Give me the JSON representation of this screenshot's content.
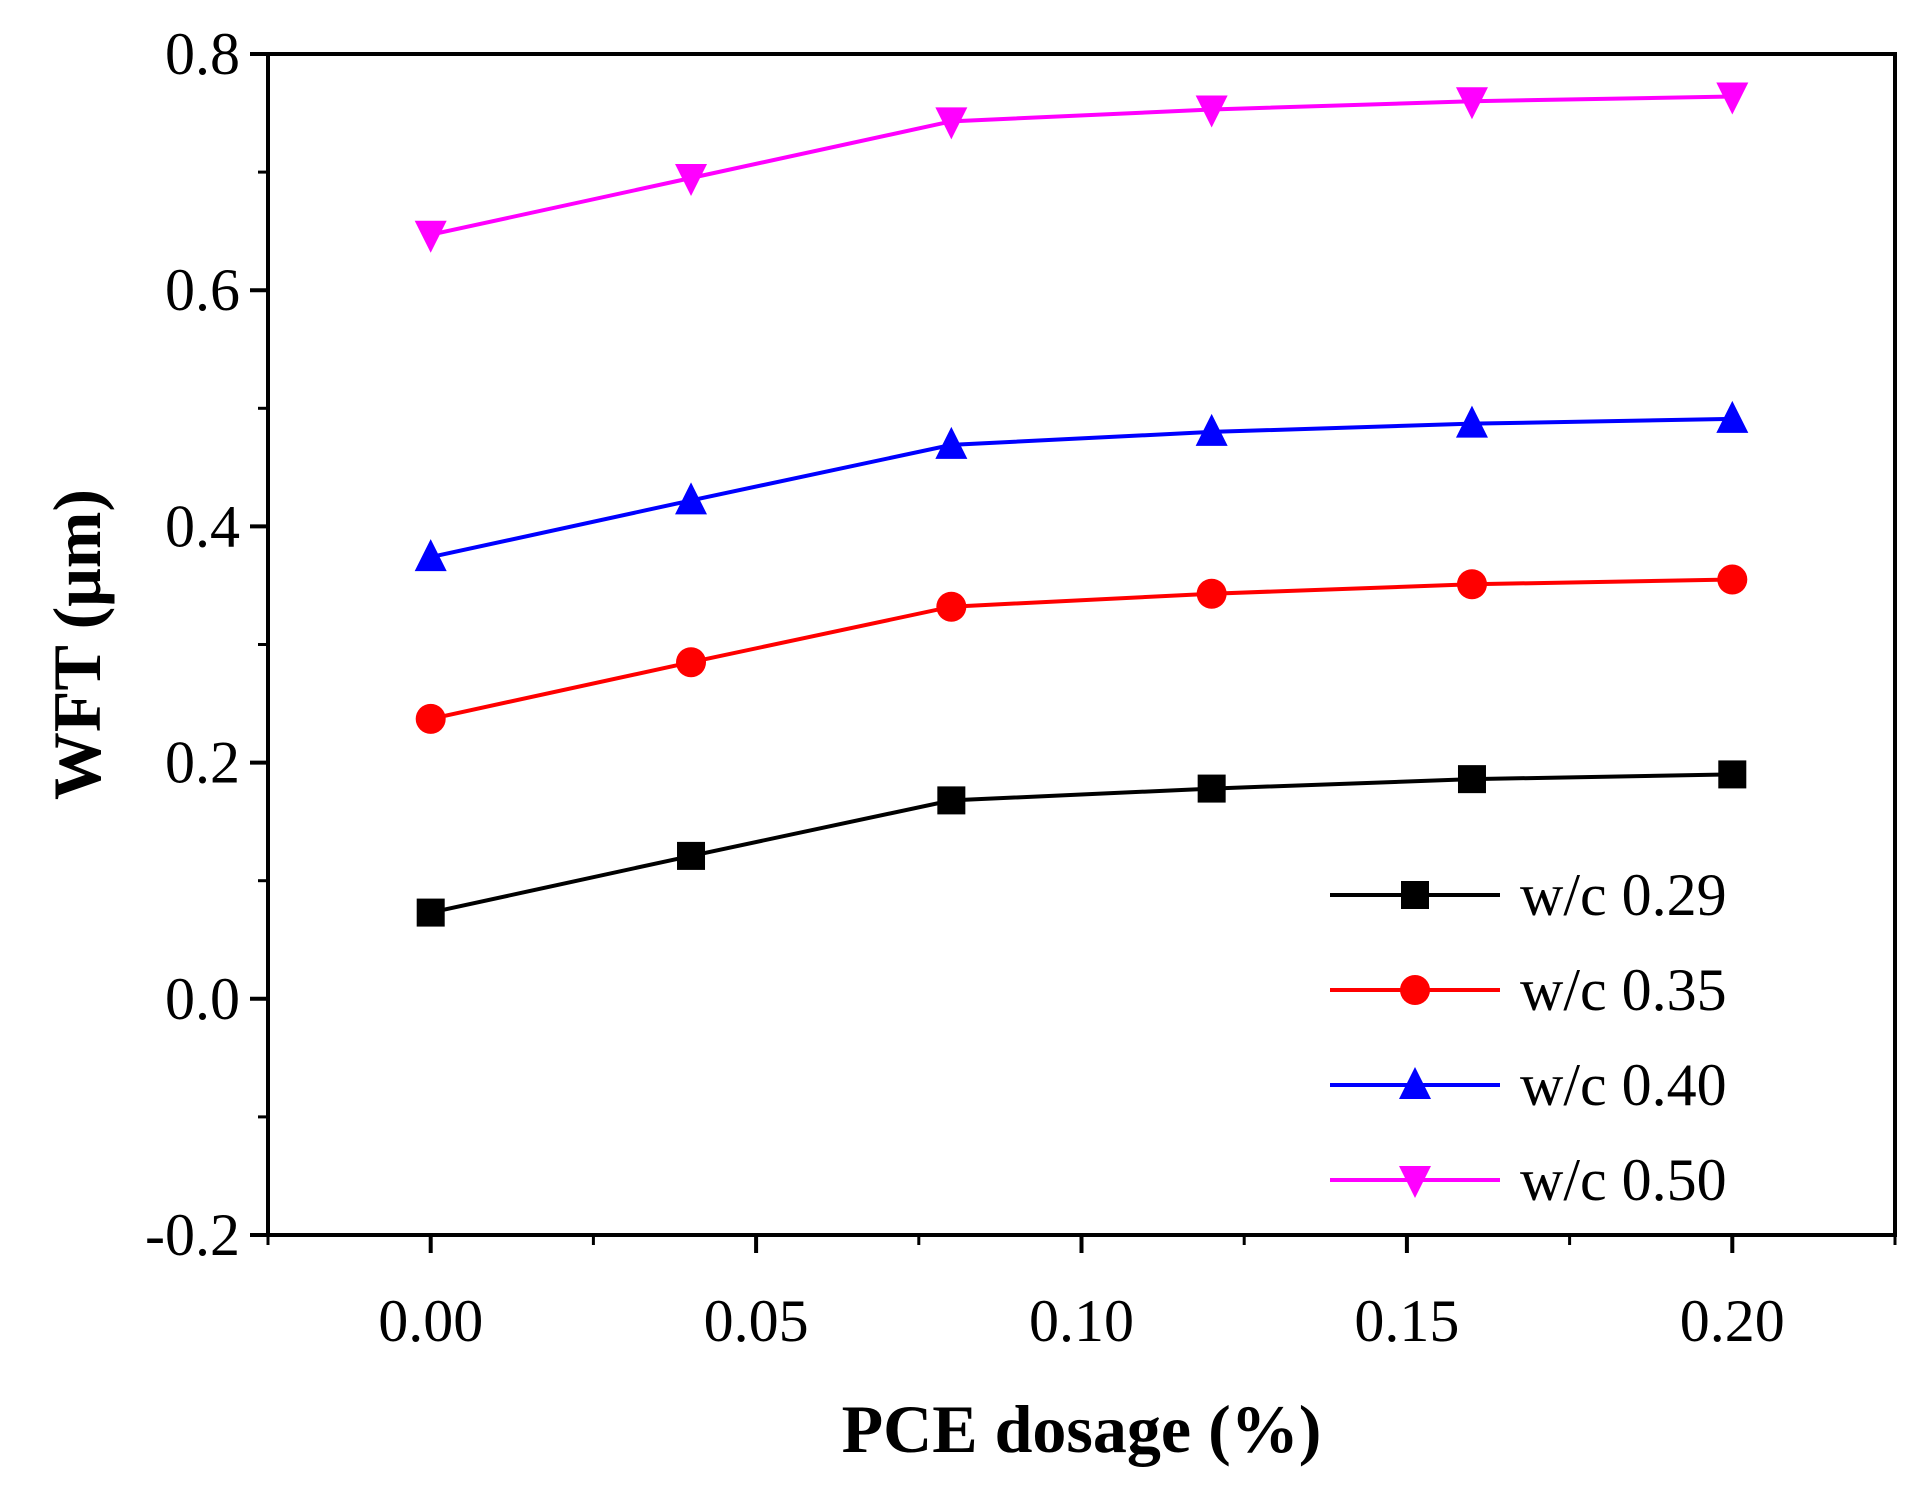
{
  "chart_data": {
    "type": "line",
    "title": "",
    "xlabel": "PCE dosage (%)",
    "ylabel": "WFT (μm)",
    "xlim": [
      -0.025,
      0.225
    ],
    "ylim": [
      -0.2,
      0.8
    ],
    "xticks": [
      0.0,
      0.05,
      0.1,
      0.15,
      0.2
    ],
    "xtick_labels": [
      "0.00",
      "0.05",
      "0.10",
      "0.15",
      "0.20"
    ],
    "yticks": [
      -0.2,
      0.0,
      0.2,
      0.4,
      0.6,
      0.8
    ],
    "ytick_labels": [
      "-0.2",
      "0.0",
      "0.2",
      "0.4",
      "0.6",
      "0.8"
    ],
    "grid": false,
    "legend_position": "bottom-right",
    "x": [
      0.0,
      0.04,
      0.08,
      0.12,
      0.16,
      0.2
    ],
    "series": [
      {
        "name": "w/c 0.29",
        "color": "#000000",
        "marker": "square",
        "values": [
          0.073,
          0.121,
          0.168,
          0.178,
          0.186,
          0.19
        ]
      },
      {
        "name": "w/c 0.35",
        "color": "#ff0000",
        "marker": "circle",
        "values": [
          0.237,
          0.285,
          0.332,
          0.343,
          0.351,
          0.355
        ]
      },
      {
        "name": "w/c 0.40",
        "color": "#0000ff",
        "marker": "triangle-up",
        "values": [
          0.374,
          0.422,
          0.469,
          0.48,
          0.487,
          0.491
        ]
      },
      {
        "name": "w/c 0.50",
        "color": "#ff00ff",
        "marker": "triangle-down",
        "values": [
          0.647,
          0.695,
          0.743,
          0.753,
          0.76,
          0.764
        ]
      }
    ]
  }
}
